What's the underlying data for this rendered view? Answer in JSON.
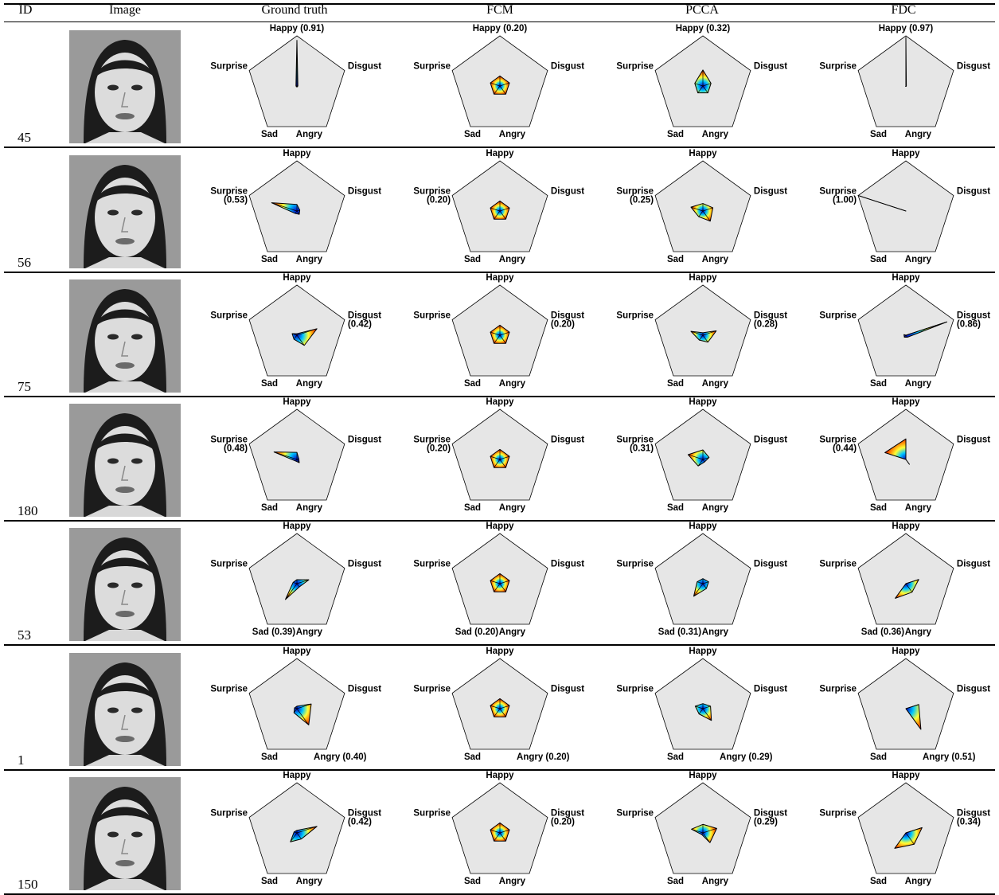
{
  "columns": [
    "ID",
    "Image",
    "Ground truth",
    "FCM",
    "PCCA",
    "FDC"
  ],
  "emotions": [
    "Happy",
    "Disgust",
    "Angry",
    "Sad",
    "Surprise"
  ],
  "rows": [
    {
      "id": "45",
      "charts": [
        {
          "values": [
            0.91,
            0.02,
            0.02,
            0.02,
            0.02
          ],
          "label_index": 0,
          "value_label": "0.91"
        },
        {
          "values": [
            0.2,
            0.2,
            0.2,
            0.2,
            0.2
          ],
          "label_index": 0,
          "value_label": "0.20"
        },
        {
          "values": [
            0.32,
            0.17,
            0.17,
            0.17,
            0.17
          ],
          "label_index": 0,
          "value_label": "0.32"
        },
        {
          "values": [
            0.97,
            0.01,
            0.01,
            0.01,
            0.0
          ],
          "label_index": 0,
          "value_label": "0.97"
        }
      ]
    },
    {
      "id": "56",
      "charts": [
        {
          "values": [
            0.13,
            0.06,
            0.08,
            0.06,
            0.53
          ],
          "label_index": 4,
          "value_label": "0.53"
        },
        {
          "values": [
            0.2,
            0.2,
            0.2,
            0.2,
            0.2
          ],
          "label_index": 4,
          "value_label": "0.20"
        },
        {
          "values": [
            0.15,
            0.21,
            0.25,
            0.14,
            0.25
          ],
          "label_index": 4,
          "value_label": "0.25"
        },
        {
          "values": [
            0.0,
            0.0,
            0.0,
            0.0,
            1.0
          ],
          "label_index": 4,
          "value_label": "1.00"
        }
      ]
    },
    {
      "id": "75",
      "charts": [
        {
          "values": [
            0.03,
            0.42,
            0.25,
            0.1,
            0.1
          ],
          "label_index": 1,
          "value_label": "0.42"
        },
        {
          "values": [
            0.2,
            0.2,
            0.2,
            0.2,
            0.2
          ],
          "label_index": 1,
          "value_label": "0.20"
        },
        {
          "values": [
            0.05,
            0.28,
            0.17,
            0.12,
            0.25
          ],
          "label_index": 1,
          "value_label": "0.28"
        },
        {
          "values": [
            0.0,
            0.86,
            0.05,
            0.05,
            0.04
          ],
          "label_index": 1,
          "value_label": "0.86"
        }
      ]
    },
    {
      "id": "180",
      "charts": [
        {
          "values": [
            0.14,
            0.04,
            0.08,
            0.04,
            0.48
          ],
          "label_index": 4,
          "value_label": "0.48"
        },
        {
          "values": [
            0.2,
            0.2,
            0.2,
            0.2,
            0.2
          ],
          "label_index": 4,
          "value_label": "0.20"
        },
        {
          "values": [
            0.19,
            0.13,
            0.06,
            0.16,
            0.31
          ],
          "label_index": 4,
          "value_label": "0.31"
        },
        {
          "values": [
            0.41,
            0.0,
            0.12,
            0.0,
            0.44
          ],
          "label_index": 4,
          "value_label": "0.44"
        }
      ]
    },
    {
      "id": "53",
      "charts": [
        {
          "values": [
            0.08,
            0.25,
            0.08,
            0.39,
            0.08
          ],
          "label_index": 3,
          "value_label": "0.39"
        },
        {
          "values": [
            0.2,
            0.2,
            0.2,
            0.2,
            0.2
          ],
          "label_index": 3,
          "value_label": "0.20"
        },
        {
          "values": [
            0.1,
            0.12,
            0.12,
            0.31,
            0.12
          ],
          "label_index": 3,
          "value_label": "0.31"
        },
        {
          "values": [
            0.0,
            0.27,
            0.21,
            0.36,
            0.0
          ],
          "label_index": 3,
          "value_label": "0.36"
        }
      ]
    },
    {
      "id": "1",
      "charts": [
        {
          "values": [
            0.05,
            0.3,
            0.4,
            0.1,
            0.05
          ],
          "label_index": 2,
          "value_label": "0.40"
        },
        {
          "values": [
            0.2,
            0.2,
            0.2,
            0.2,
            0.2
          ],
          "label_index": 2,
          "value_label": "0.20"
        },
        {
          "values": [
            0.1,
            0.16,
            0.29,
            0.13,
            0.16
          ],
          "label_index": 2,
          "value_label": "0.29"
        },
        {
          "values": [
            0.0,
            0.27,
            0.51,
            0.0,
            0.0
          ],
          "label_index": 2,
          "value_label": "0.51"
        }
      ]
    },
    {
      "id": "150",
      "charts": [
        {
          "values": [
            0.05,
            0.42,
            0.15,
            0.22,
            0.06
          ],
          "label_index": 1,
          "value_label": "0.42"
        },
        {
          "values": [
            0.2,
            0.2,
            0.2,
            0.2,
            0.2
          ],
          "label_index": 1,
          "value_label": "0.20"
        },
        {
          "values": [
            0.17,
            0.29,
            0.24,
            0.04,
            0.24
          ],
          "label_index": 1,
          "value_label": "0.29"
        },
        {
          "values": [
            0.0,
            0.34,
            0.28,
            0.38,
            0.0
          ],
          "label_index": 1,
          "value_label": "0.34"
        }
      ]
    }
  ],
  "colors": {
    "pentagon_fill": "#e6e6e6",
    "center": "#0000c8",
    "gradient": [
      "#0000c8",
      "#00c8ff",
      "#ffff33",
      "#ff7700",
      "#c80000"
    ]
  }
}
